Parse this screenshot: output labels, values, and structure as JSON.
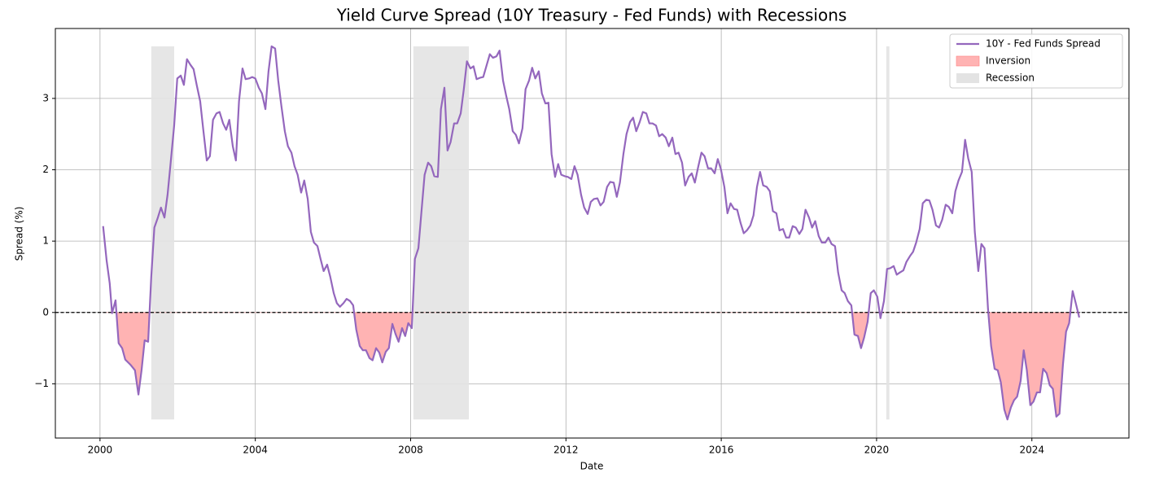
{
  "chart_data": {
    "type": "line",
    "title": "Yield Curve Spread (10Y Treasury - Fed Funds) with Recessions",
    "x_label": "Date",
    "y_label": "Spread (%)",
    "x": [
      2000.08,
      2000.17,
      2000.25,
      2000.31,
      2000.4,
      2000.48,
      2000.57,
      2000.65,
      2000.78,
      2000.9,
      2000.99,
      2001.07,
      2001.15,
      2001.24,
      2001.32,
      2001.4,
      2001.49,
      2001.57,
      2001.66,
      2001.74,
      2001.82,
      2001.91,
      2001.99,
      2002.08,
      2002.16,
      2002.24,
      2002.33,
      2002.41,
      2002.49,
      2002.58,
      2002.66,
      2002.75,
      2002.83,
      2002.91,
      2003,
      2003.08,
      2003.17,
      2003.25,
      2003.33,
      2003.42,
      2003.5,
      2003.58,
      2003.67,
      2003.75,
      2003.84,
      2003.92,
      2004,
      2004.09,
      2004.17,
      2004.26,
      2004.34,
      2004.42,
      2004.51,
      2004.59,
      2004.67,
      2004.76,
      2004.84,
      2004.93,
      2005.01,
      2005.09,
      2005.18,
      2005.26,
      2005.35,
      2005.43,
      2005.51,
      2005.6,
      2005.68,
      2005.76,
      2005.85,
      2005.93,
      2006.02,
      2006.1,
      2006.18,
      2006.27,
      2006.35,
      2006.44,
      2006.52,
      2006.6,
      2006.69,
      2006.77,
      2006.85,
      2006.94,
      2007.02,
      2007.11,
      2007.19,
      2007.27,
      2007.36,
      2007.44,
      2007.53,
      2007.61,
      2007.69,
      2007.78,
      2007.86,
      2007.94,
      2008.03,
      2008.11,
      2008.2,
      2008.28,
      2008.36,
      2008.45,
      2008.53,
      2008.61,
      2008.7,
      2008.78,
      2008.87,
      2008.95,
      2009.03,
      2009.12,
      2009.2,
      2009.29,
      2009.37,
      2009.45,
      2009.54,
      2009.62,
      2009.7,
      2009.79,
      2009.87,
      2009.96,
      2010.04,
      2010.12,
      2010.21,
      2010.29,
      2010.38,
      2010.46,
      2010.54,
      2010.63,
      2010.71,
      2010.79,
      2010.88,
      2010.96,
      2011.05,
      2011.13,
      2011.21,
      2011.3,
      2011.38,
      2011.47,
      2011.55,
      2011.63,
      2011.72,
      2011.8,
      2011.88,
      2011.97,
      2012.05,
      2012.14,
      2012.22,
      2012.3,
      2012.39,
      2012.47,
      2012.56,
      2012.64,
      2012.72,
      2012.81,
      2012.89,
      2012.97,
      2013.06,
      2013.14,
      2013.23,
      2013.31,
      2013.39,
      2013.48,
      2013.56,
      2013.65,
      2013.73,
      2013.81,
      2013.9,
      2013.98,
      2014.07,
      2014.15,
      2014.23,
      2014.32,
      2014.4,
      2014.48,
      2014.57,
      2014.65,
      2014.74,
      2014.82,
      2014.9,
      2014.99,
      2015.07,
      2015.16,
      2015.24,
      2015.32,
      2015.41,
      2015.49,
      2015.57,
      2015.66,
      2015.74,
      2015.83,
      2015.91,
      2015.99,
      2016.08,
      2016.16,
      2016.24,
      2016.33,
      2016.41,
      2016.5,
      2016.58,
      2016.66,
      2016.75,
      2016.83,
      2016.92,
      2017,
      2017.08,
      2017.17,
      2017.25,
      2017.33,
      2017.42,
      2017.5,
      2017.59,
      2017.67,
      2017.75,
      2017.84,
      2017.92,
      2018.01,
      2018.09,
      2018.17,
      2018.26,
      2018.34,
      2018.42,
      2018.51,
      2018.59,
      2018.68,
      2018.76,
      2018.84,
      2018.93,
      2019.01,
      2019.1,
      2019.18,
      2019.26,
      2019.35,
      2019.43,
      2019.52,
      2019.6,
      2019.68,
      2019.77,
      2019.85,
      2019.93,
      2020.02,
      2020.1,
      2020.19,
      2020.27,
      2020.35,
      2020.44,
      2020.52,
      2020.6,
      2020.69,
      2020.77,
      2020.86,
      2020.94,
      2021.02,
      2021.11,
      2021.19,
      2021.28,
      2021.36,
      2021.44,
      2021.53,
      2021.61,
      2021.69,
      2021.78,
      2021.86,
      2021.95,
      2022.03,
      2022.11,
      2022.2,
      2022.28,
      2022.36,
      2022.45,
      2022.53,
      2022.62,
      2022.7,
      2022.78,
      2022.87,
      2022.95,
      2023.04,
      2023.12,
      2023.2,
      2023.29,
      2023.37,
      2023.46,
      2023.54,
      2023.62,
      2023.71,
      2023.79,
      2023.87,
      2023.96,
      2024.04,
      2024.13,
      2024.21,
      2024.29,
      2024.38,
      2024.46,
      2024.54,
      2024.63,
      2024.71,
      2024.8,
      2024.88,
      2024.96,
      2025.05,
      2025.13,
      2025.22
    ],
    "series": [
      {
        "name": "10Y - Fed Funds Spread",
        "color": "#9467bd",
        "values": [
          1.21,
          0.73,
          0.41,
          -0.01,
          0.17,
          -0.43,
          -0.5,
          -0.66,
          -0.73,
          -0.81,
          -1.15,
          -0.81,
          -0.39,
          -0.41,
          0.5,
          1.19,
          1.33,
          1.47,
          1.33,
          1.65,
          2.1,
          2.62,
          3.28,
          3.32,
          3.19,
          3.55,
          3.47,
          3.41,
          3.19,
          2.96,
          2.56,
          2.13,
          2.19,
          2.7,
          2.79,
          2.81,
          2.65,
          2.56,
          2.7,
          2.33,
          2.13,
          2.96,
          3.42,
          3.27,
          3.28,
          3.3,
          3.28,
          3.15,
          3.07,
          2.85,
          3.38,
          3.73,
          3.7,
          3.25,
          2.9,
          2.54,
          2.33,
          2.24,
          2.05,
          1.93,
          1.68,
          1.85,
          1.59,
          1.13,
          0.98,
          0.93,
          0.75,
          0.58,
          0.67,
          0.5,
          0.27,
          0.13,
          0.08,
          0.13,
          0.19,
          0.16,
          0.1,
          -0.24,
          -0.47,
          -0.53,
          -0.53,
          -0.64,
          -0.67,
          -0.5,
          -0.56,
          -0.7,
          -0.55,
          -0.5,
          -0.16,
          -0.3,
          -0.41,
          -0.22,
          -0.33,
          -0.15,
          -0.22,
          0.75,
          0.9,
          1.42,
          1.93,
          2.1,
          2.05,
          1.91,
          1.9,
          2.85,
          3.15,
          2.27,
          2.39,
          2.65,
          2.65,
          2.79,
          3.13,
          3.52,
          3.42,
          3.45,
          3.27,
          3.29,
          3.3,
          3.47,
          3.62,
          3.57,
          3.59,
          3.67,
          3.25,
          3.04,
          2.85,
          2.54,
          2.49,
          2.37,
          2.58,
          3.13,
          3.25,
          3.43,
          3.28,
          3.38,
          3.07,
          2.93,
          2.94,
          2.22,
          1.9,
          2.08,
          1.93,
          1.91,
          1.9,
          1.87,
          2.05,
          1.93,
          1.65,
          1.47,
          1.38,
          1.55,
          1.59,
          1.6,
          1.5,
          1.55,
          1.76,
          1.83,
          1.82,
          1.62,
          1.82,
          2.22,
          2.5,
          2.67,
          2.73,
          2.54,
          2.67,
          2.81,
          2.79,
          2.65,
          2.65,
          2.62,
          2.47,
          2.5,
          2.45,
          2.33,
          2.45,
          2.22,
          2.24,
          2.1,
          1.78,
          1.9,
          1.95,
          1.82,
          2.05,
          2.24,
          2.19,
          2.02,
          2.02,
          1.95,
          2.15,
          2.01,
          1.76,
          1.39,
          1.53,
          1.45,
          1.44,
          1.25,
          1.11,
          1.15,
          1.22,
          1.36,
          1.76,
          1.97,
          1.78,
          1.76,
          1.7,
          1.42,
          1.39,
          1.15,
          1.17,
          1.05,
          1.05,
          1.21,
          1.19,
          1.1,
          1.17,
          1.44,
          1.33,
          1.19,
          1.28,
          1.07,
          0.98,
          0.98,
          1.05,
          0.96,
          0.93,
          0.56,
          0.31,
          0.27,
          0.16,
          0.1,
          -0.31,
          -0.33,
          -0.5,
          -0.35,
          -0.13,
          0.27,
          0.31,
          0.22,
          -0.08,
          0.16,
          0.61,
          0.62,
          0.65,
          0.53,
          0.56,
          0.59,
          0.71,
          0.79,
          0.85,
          0.98,
          1.17,
          1.53,
          1.58,
          1.57,
          1.44,
          1.22,
          1.19,
          1.3,
          1.51,
          1.48,
          1.39,
          1.7,
          1.85,
          1.97,
          2.42,
          2.16,
          1.97,
          1.13,
          0.58,
          0.96,
          0.9,
          0.05,
          -0.47,
          -0.79,
          -0.81,
          -0.98,
          -1.36,
          -1.5,
          -1.33,
          -1.23,
          -1.18,
          -0.96,
          -0.53,
          -0.81,
          -1.3,
          -1.25,
          -1.12,
          -1.12,
          -0.79,
          -0.85,
          -1.02,
          -1.07,
          -1.46,
          -1.42,
          -0.73,
          -0.27,
          -0.15,
          0.3,
          0.13,
          -0.07
        ]
      }
    ],
    "inversion": {
      "name": "Inversion",
      "color": "#ffb3b3",
      "edge": "#ff8080"
    },
    "recessions": {
      "name": "Recession",
      "color": "#e3e3e3",
      "spans": [
        {
          "start": 2001.32,
          "end": 2001.91
        },
        {
          "start": 2008.07,
          "end": 2009.5
        },
        {
          "start": 2020.25,
          "end": 2020.33
        }
      ]
    },
    "reference_line": 0,
    "xlim": [
      1998.85,
      2026.5
    ],
    "xticks": [
      2000,
      2004,
      2008,
      2012,
      2016,
      2020,
      2024
    ],
    "ylim": [
      -1.76,
      3.98
    ],
    "yticks": [
      {
        "value": -1,
        "label": "−1"
      },
      0,
      1,
      2,
      3
    ],
    "grid": true,
    "legend": "upper right"
  }
}
